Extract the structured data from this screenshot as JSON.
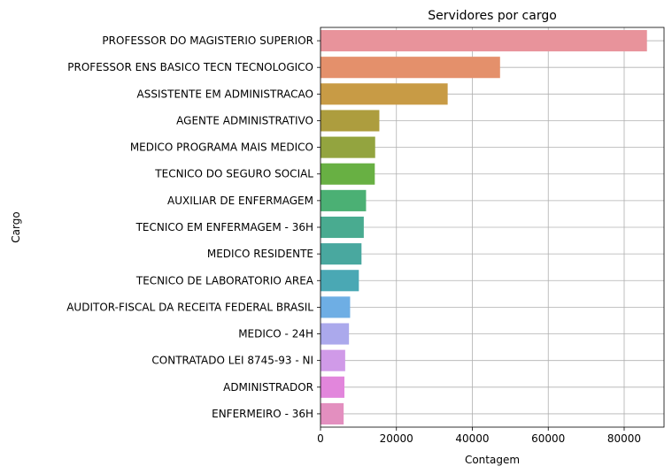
{
  "chart_data": {
    "type": "bar",
    "orientation": "horizontal",
    "title": "Servidores por cargo",
    "xlabel": "Contagem",
    "ylabel": "Cargo",
    "xlim": [
      0,
      90500
    ],
    "xticks": [
      0,
      20000,
      40000,
      60000,
      80000
    ],
    "xtick_labels": [
      "0",
      "20000",
      "40000",
      "60000",
      "80000"
    ],
    "grid": true,
    "categories": [
      "PROFESSOR DO MAGISTERIO SUPERIOR",
      "PROFESSOR ENS BASICO TECN TECNOLOGICO",
      "ASSISTENTE EM ADMINISTRACAO",
      "AGENTE ADMINISTRATIVO",
      "MEDICO PROGRAMA MAIS MEDICO",
      "TECNICO DO SEGURO SOCIAL",
      "AUXILIAR DE ENFERMAGEM",
      "TECNICO EM ENFERMAGEM - 36H",
      "MEDICO RESIDENTE",
      "TECNICO DE LABORATORIO AREA",
      "AUDITOR-FISCAL DA RECEITA FEDERAL BRASIL",
      "MEDICO - 24H",
      "CONTRATADO LEI 8745-93 - NI",
      "ADMINISTRADOR",
      "ENFERMEIRO - 36H"
    ],
    "values": [
      86000,
      47300,
      33500,
      15500,
      14400,
      14300,
      12000,
      11400,
      10800,
      10100,
      7800,
      7500,
      6500,
      6300,
      6100
    ],
    "colors": [
      "#e8939b",
      "#e4906b",
      "#c89b45",
      "#ad9d3e",
      "#93a43f",
      "#68b043",
      "#4bb074",
      "#49ab90",
      "#49a89f",
      "#4aa8b4",
      "#6eaee4",
      "#aba9ec",
      "#d09ae8",
      "#e286dc",
      "#e38fbf"
    ]
  }
}
